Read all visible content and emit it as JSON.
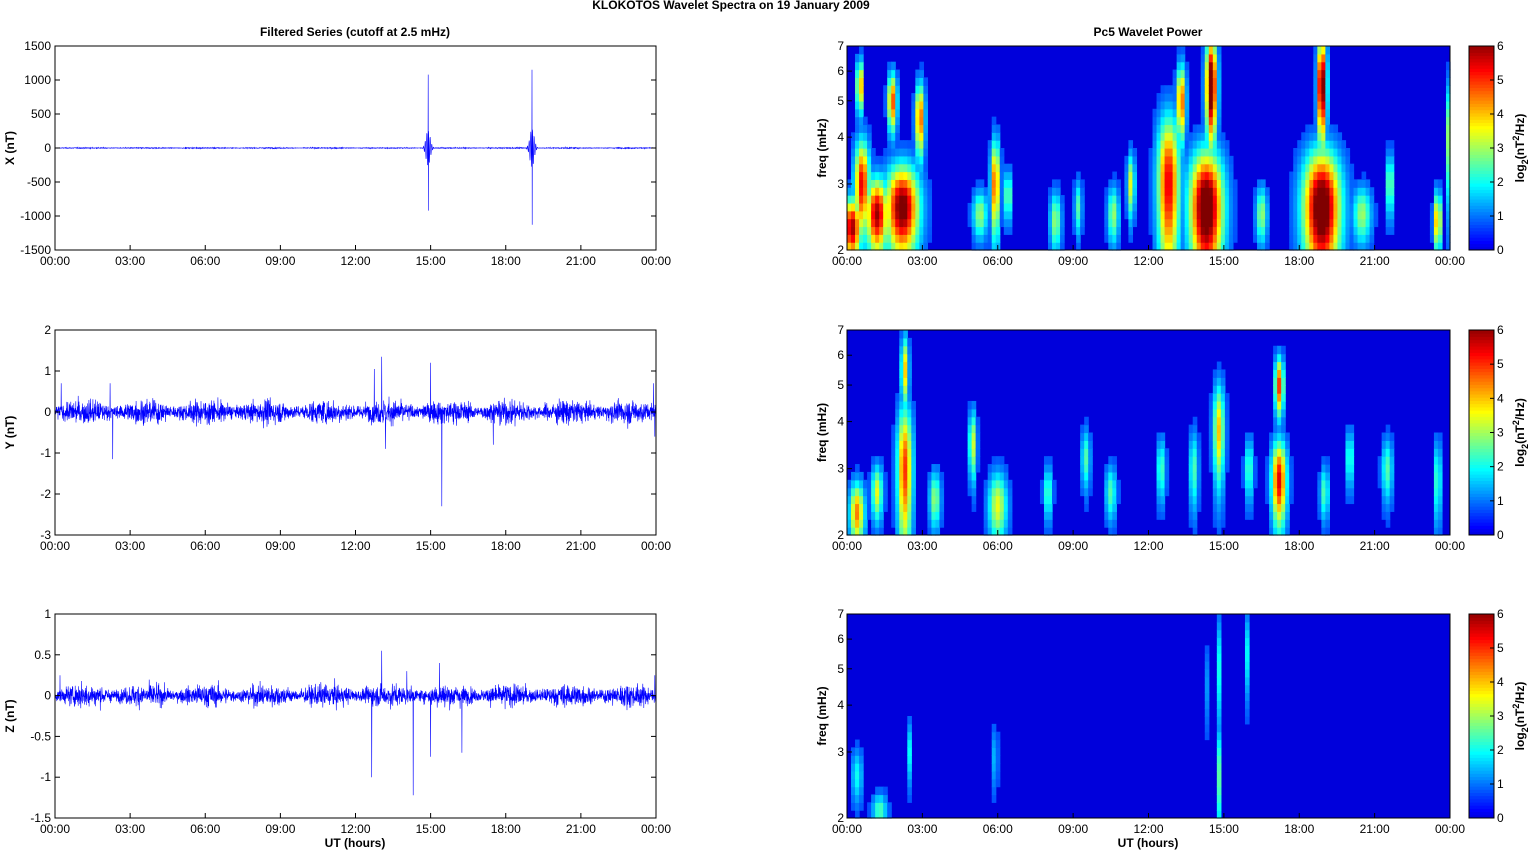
{
  "figure": {
    "title": "KLOKOTOS Wavelet Spectra on 19 January   2009",
    "left_title": "Filtered Series (cutoff at 2.5 mHz)",
    "right_title": "Pc5 Wavelet Power",
    "xlabel": "UT (hours)",
    "x_ticks": [
      "00:00",
      "03:00",
      "06:00",
      "09:00",
      "12:00",
      "15:00",
      "18:00",
      "21:00",
      "00:00"
    ],
    "freq_label": "freq (mHz)",
    "colorbar_label": "log2(nT2/Hz)",
    "line_color": "#0000ff",
    "colormap": "jet"
  },
  "chart_data": [
    {
      "type": "line",
      "panel": "X",
      "ylabel": "X (nT)",
      "xlim": [
        0,
        24
      ],
      "ylim": [
        -1500,
        1500
      ],
      "yticks": [
        -1500,
        -1000,
        -500,
        0,
        500,
        1000,
        1500
      ],
      "noise_amp": 4,
      "events": [
        {
          "t": 14.9,
          "amp": 1080,
          "min": -920,
          "width": 0.25
        },
        {
          "t": 19.05,
          "amp": 1150,
          "min": -1130,
          "width": 0.25
        }
      ]
    },
    {
      "type": "line",
      "panel": "Y",
      "ylabel": "Y (nT)",
      "xlim": [
        0,
        24
      ],
      "ylim": [
        -3,
        2
      ],
      "yticks": [
        -3,
        -2,
        -1,
        0,
        1,
        2
      ],
      "noise_amp": 0.15,
      "spikes": [
        {
          "t": 0.25,
          "v": 0.7
        },
        {
          "t": 2.3,
          "v": -1.15
        },
        {
          "t": 2.2,
          "v": 0.7
        },
        {
          "t": 12.75,
          "v": 1.05
        },
        {
          "t": 13.05,
          "v": 1.35
        },
        {
          "t": 13.2,
          "v": -0.9
        },
        {
          "t": 15.0,
          "v": 1.2
        },
        {
          "t": 15.45,
          "v": -2.3
        },
        {
          "t": 17.5,
          "v": -0.8
        },
        {
          "t": 23.9,
          "v": 0.7
        },
        {
          "t": 23.95,
          "v": -0.6
        }
      ]
    },
    {
      "type": "line",
      "panel": "Z",
      "ylabel": "Z (nT)",
      "xlim": [
        0,
        24
      ],
      "ylim": [
        -1.5,
        1
      ],
      "yticks": [
        -1.5,
        -1,
        -0.5,
        0,
        0.5,
        1
      ],
      "ytick_labels": [
        "-1.5",
        "-1",
        "-0.5",
        "0",
        "0.5",
        "1"
      ],
      "noise_amp": 0.07,
      "spikes": [
        {
          "t": 12.65,
          "v": -1.0
        },
        {
          "t": 13.05,
          "v": 0.55
        },
        {
          "t": 14.3,
          "v": -1.22
        },
        {
          "t": 15.0,
          "v": -0.75
        },
        {
          "t": 15.35,
          "v": 0.4
        },
        {
          "t": 16.25,
          "v": -0.7
        },
        {
          "t": 14.05,
          "v": 0.3
        },
        {
          "t": 0.2,
          "v": 0.25
        },
        {
          "t": 23.95,
          "v": 0.25
        }
      ]
    },
    {
      "type": "heatmap",
      "panel": "X",
      "title": "Pc5 Wavelet Power",
      "ylabel": "freq (mHz)",
      "xlim": [
        0,
        24
      ],
      "ylim": [
        2,
        7
      ],
      "yscale": "log",
      "yticks": [
        2,
        3,
        4,
        5,
        6,
        7
      ],
      "clim": [
        0,
        6
      ],
      "cticks": [
        0,
        1,
        2,
        3,
        4,
        5,
        6
      ],
      "blobs": [
        {
          "t": 0.2,
          "f": 2.3,
          "p": 6,
          "w": 0.25,
          "h": 0.3
        },
        {
          "t": 0.6,
          "f": 3.0,
          "p": 5.5,
          "w": 0.2,
          "h": 0.6
        },
        {
          "t": 1.2,
          "f": 2.5,
          "p": 6,
          "w": 0.3,
          "h": 0.4
        },
        {
          "t": 2.2,
          "f": 2.6,
          "p": 6.5,
          "w": 0.45,
          "h": 0.5
        },
        {
          "t": 1.8,
          "f": 5.0,
          "p": 5,
          "w": 0.12,
          "h": 0.6
        },
        {
          "t": 2.9,
          "f": 4.5,
          "p": 5,
          "w": 0.12,
          "h": 0.7
        },
        {
          "t": 0.5,
          "f": 5.5,
          "p": 5,
          "w": 0.08,
          "h": 0.6
        },
        {
          "t": 5.9,
          "f": 3.0,
          "p": 5,
          "w": 0.12,
          "h": 0.6
        },
        {
          "t": 5.3,
          "f": 2.5,
          "p": 3,
          "w": 0.2,
          "h": 0.25
        },
        {
          "t": 6.4,
          "f": 2.8,
          "p": 3,
          "w": 0.1,
          "h": 0.3
        },
        {
          "t": 8.3,
          "f": 2.4,
          "p": 3,
          "w": 0.15,
          "h": 0.3
        },
        {
          "t": 9.2,
          "f": 2.6,
          "p": 2.5,
          "w": 0.1,
          "h": 0.3
        },
        {
          "t": 10.6,
          "f": 2.5,
          "p": 3,
          "w": 0.15,
          "h": 0.3
        },
        {
          "t": 11.3,
          "f": 3.0,
          "p": 3.5,
          "w": 0.1,
          "h": 0.4
        },
        {
          "t": 12.8,
          "f": 3.0,
          "p": 5.5,
          "w": 0.3,
          "h": 1.0
        },
        {
          "t": 13.3,
          "f": 5.0,
          "p": 5,
          "w": 0.12,
          "h": 0.8
        },
        {
          "t": 14.3,
          "f": 2.6,
          "p": 7,
          "w": 0.45,
          "h": 0.7
        },
        {
          "t": 14.5,
          "f": 5.5,
          "p": 7,
          "w": 0.15,
          "h": 1.2
        },
        {
          "t": 18.9,
          "f": 2.6,
          "p": 7,
          "w": 0.5,
          "h": 0.7
        },
        {
          "t": 18.9,
          "f": 5.5,
          "p": 7,
          "w": 0.12,
          "h": 1.2
        },
        {
          "t": 16.5,
          "f": 2.5,
          "p": 3,
          "w": 0.15,
          "h": 0.3
        },
        {
          "t": 20.5,
          "f": 2.5,
          "p": 3,
          "w": 0.25,
          "h": 0.3
        },
        {
          "t": 21.6,
          "f": 3.0,
          "p": 3,
          "w": 0.1,
          "h": 0.4
        },
        {
          "t": 23.5,
          "f": 2.4,
          "p": 4.5,
          "w": 0.1,
          "h": 0.3
        },
        {
          "t": 23.9,
          "f": 4.0,
          "p": 3,
          "w": 0.06,
          "h": 1.0
        }
      ]
    },
    {
      "type": "heatmap",
      "panel": "Y",
      "ylabel": "freq (mHz)",
      "xlim": [
        0,
        24
      ],
      "ylim": [
        2,
        7
      ],
      "yscale": "log",
      "yticks": [
        2,
        3,
        4,
        5,
        6,
        7
      ],
      "clim": [
        0,
        6
      ],
      "cticks": [
        0,
        1,
        2,
        3,
        4,
        5,
        6
      ],
      "blobs": [
        {
          "t": 0.4,
          "f": 2.3,
          "p": 4.5,
          "w": 0.2,
          "h": 0.3
        },
        {
          "t": 1.2,
          "f": 2.6,
          "p": 3.5,
          "w": 0.15,
          "h": 0.3
        },
        {
          "t": 2.3,
          "f": 3.0,
          "p": 5,
          "w": 0.2,
          "h": 0.9
        },
        {
          "t": 2.3,
          "f": 5.5,
          "p": 4,
          "w": 0.1,
          "h": 0.8
        },
        {
          "t": 3.5,
          "f": 2.5,
          "p": 3,
          "w": 0.15,
          "h": 0.3
        },
        {
          "t": 5.0,
          "f": 3.5,
          "p": 3.5,
          "w": 0.1,
          "h": 0.5
        },
        {
          "t": 6.0,
          "f": 2.4,
          "p": 3.5,
          "w": 0.25,
          "h": 0.35
        },
        {
          "t": 8.0,
          "f": 2.6,
          "p": 2.5,
          "w": 0.12,
          "h": 0.3
        },
        {
          "t": 9.5,
          "f": 3.2,
          "p": 2.5,
          "w": 0.12,
          "h": 0.4
        },
        {
          "t": 10.5,
          "f": 2.6,
          "p": 2.5,
          "w": 0.15,
          "h": 0.3
        },
        {
          "t": 12.5,
          "f": 3.0,
          "p": 2.5,
          "w": 0.12,
          "h": 0.4
        },
        {
          "t": 13.8,
          "f": 3.0,
          "p": 2.5,
          "w": 0.12,
          "h": 0.5
        },
        {
          "t": 14.8,
          "f": 3.8,
          "p": 4,
          "w": 0.15,
          "h": 0.8
        },
        {
          "t": 16.0,
          "f": 3.0,
          "p": 2.5,
          "w": 0.12,
          "h": 0.4
        },
        {
          "t": 17.2,
          "f": 2.8,
          "p": 5.5,
          "w": 0.2,
          "h": 0.5
        },
        {
          "t": 17.2,
          "f": 5.0,
          "p": 5,
          "w": 0.12,
          "h": 0.6
        },
        {
          "t": 19.0,
          "f": 2.6,
          "p": 2.5,
          "w": 0.12,
          "h": 0.3
        },
        {
          "t": 20.0,
          "f": 3.2,
          "p": 2.5,
          "w": 0.1,
          "h": 0.4
        },
        {
          "t": 21.5,
          "f": 3.0,
          "p": 2.5,
          "w": 0.15,
          "h": 0.4
        },
        {
          "t": 23.5,
          "f": 2.8,
          "p": 2.5,
          "w": 0.1,
          "h": 0.5
        }
      ]
    },
    {
      "type": "heatmap",
      "panel": "Z",
      "ylabel": "freq (mHz)",
      "xlim": [
        0,
        24
      ],
      "ylim": [
        2,
        7
      ],
      "yscale": "log",
      "yticks": [
        2,
        3,
        4,
        5,
        6,
        7
      ],
      "clim": [
        0,
        6
      ],
      "cticks": [
        0,
        1,
        2,
        3,
        4,
        5,
        6
      ],
      "blobs": [
        {
          "t": 0.4,
          "f": 2.6,
          "p": 2,
          "w": 0.15,
          "h": 0.3
        },
        {
          "t": 1.3,
          "f": 2.1,
          "p": 2.5,
          "w": 0.2,
          "h": 0.15
        },
        {
          "t": 2.5,
          "f": 3.0,
          "p": 2,
          "w": 0.06,
          "h": 0.4
        },
        {
          "t": 5.9,
          "f": 2.9,
          "p": 2,
          "w": 0.06,
          "h": 0.4
        },
        {
          "t": 14.8,
          "f": 2.6,
          "p": 2.5,
          "w": 0.06,
          "h": 0.6
        },
        {
          "t": 14.8,
          "f": 5.0,
          "p": 2,
          "w": 0.05,
          "h": 1.2
        },
        {
          "t": 15.9,
          "f": 5.5,
          "p": 2,
          "w": 0.05,
          "h": 1.0
        },
        {
          "t": 14.3,
          "f": 4.5,
          "p": 1.3,
          "w": 0.04,
          "h": 0.8
        }
      ]
    }
  ]
}
